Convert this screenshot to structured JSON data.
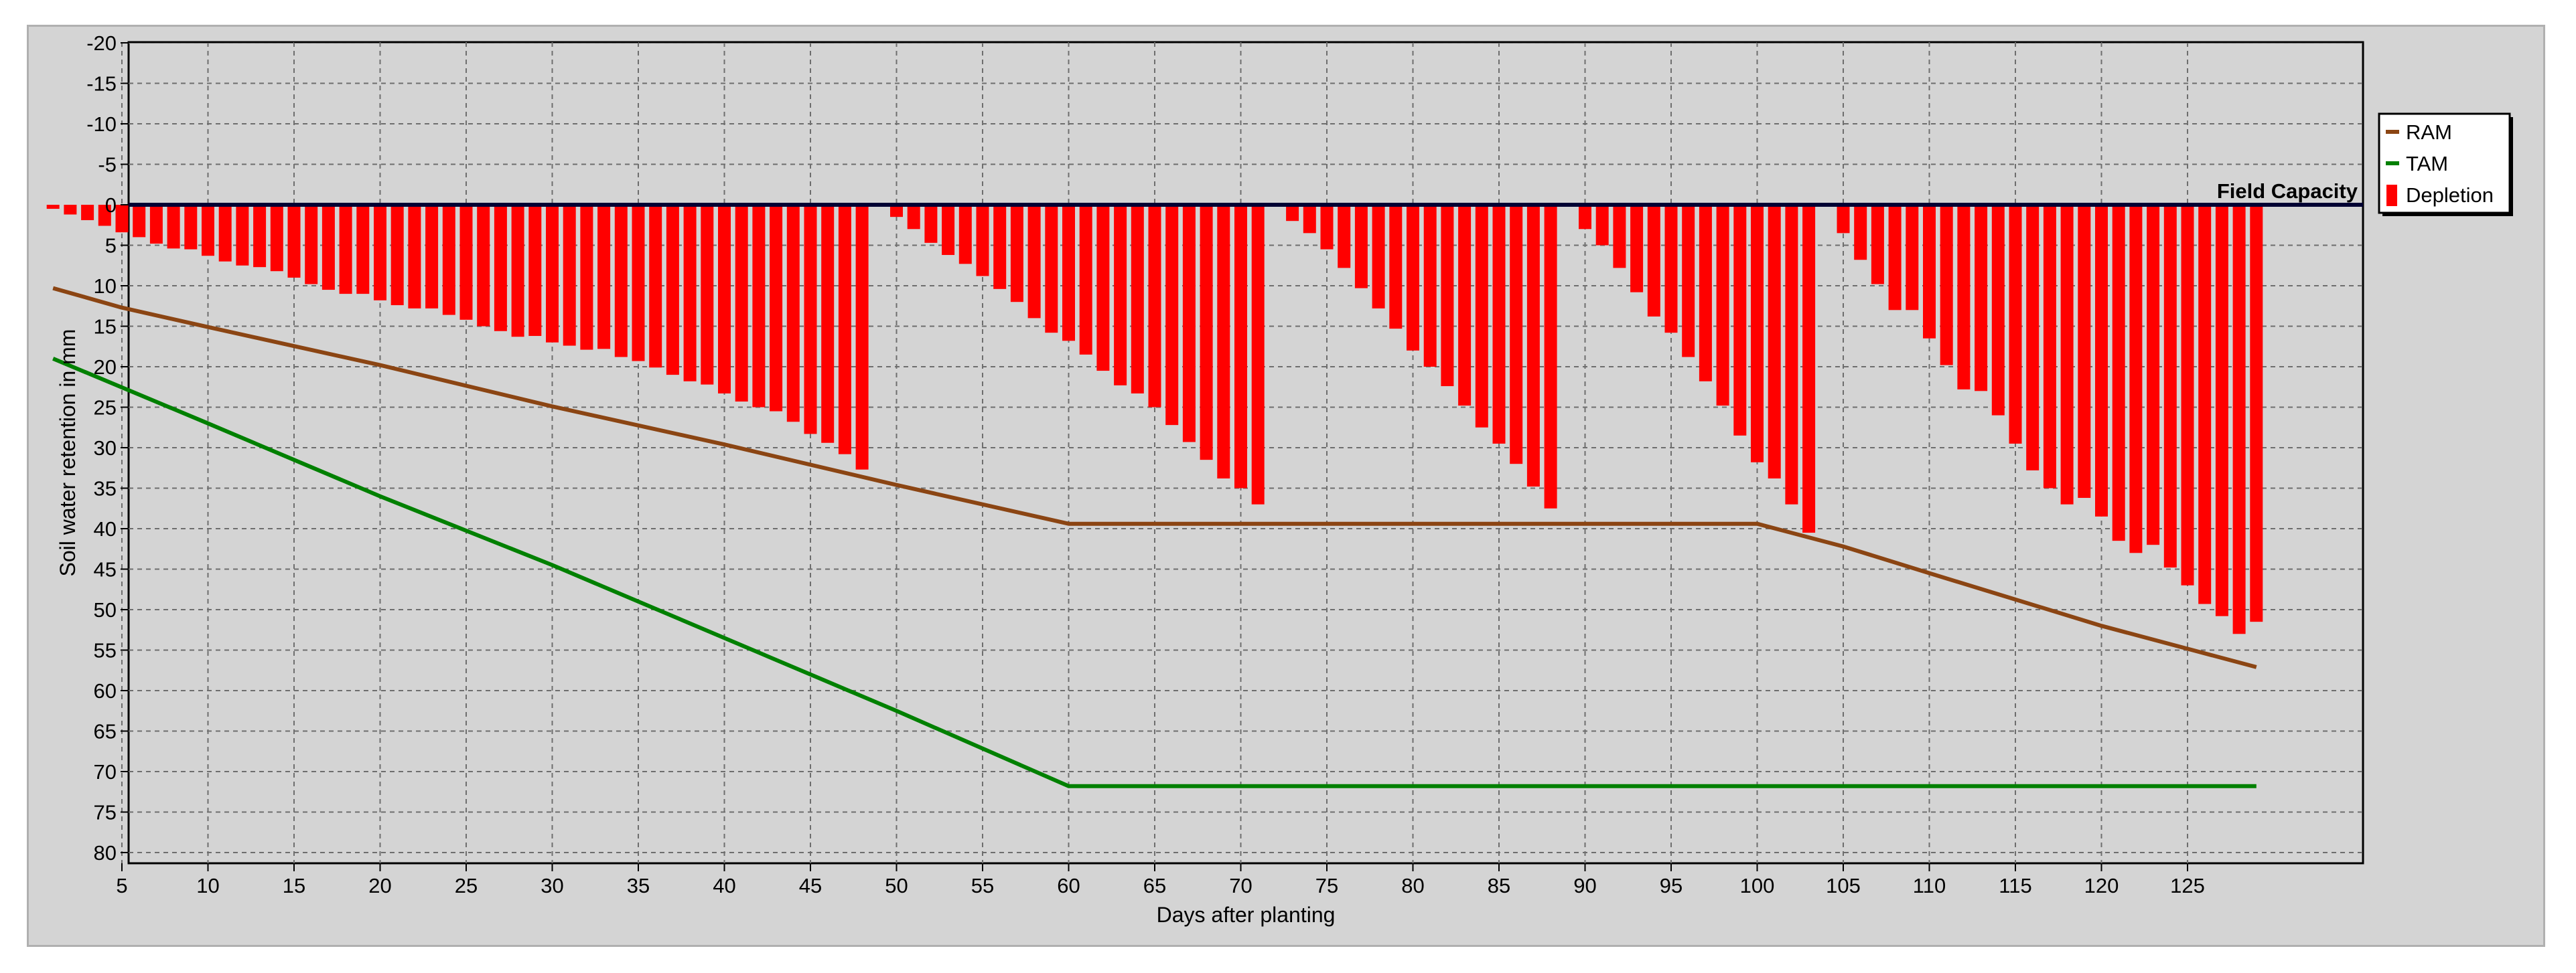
{
  "chart_data": {
    "type": "bar",
    "xlabel": "Days after planting",
    "ylabel": "Soil water retention in mm",
    "xlim": [
      0,
      130
    ],
    "ylim": [
      -20,
      82
    ],
    "y_inverted": true,
    "grid": true,
    "x_ticks": [
      5,
      10,
      15,
      20,
      25,
      30,
      35,
      40,
      45,
      50,
      55,
      60,
      65,
      70,
      75,
      80,
      85,
      90,
      95,
      100,
      105,
      110,
      115,
      120,
      125
    ],
    "y_ticks": [
      -20,
      -15,
      -10,
      -5,
      0,
      5,
      10,
      15,
      20,
      25,
      30,
      35,
      40,
      45,
      50,
      55,
      60,
      65,
      70,
      75,
      80
    ],
    "reference_line": {
      "label": "Field Capacity",
      "value": 0
    },
    "legend": {
      "position": "right",
      "entries": [
        "RAM",
        "TAM",
        "Depletion"
      ]
    },
    "colors": {
      "RAM": "#8b4513",
      "TAM": "#008000",
      "Depletion": "#ff0000",
      "field_capacity": "#000033",
      "plot_bg": "#d4d4d4",
      "grid": "#6e6e6e"
    },
    "series": [
      {
        "name": "Depletion",
        "type": "bar",
        "x": [
          1,
          2,
          3,
          4,
          5,
          6,
          7,
          8,
          9,
          10,
          11,
          12,
          13,
          14,
          15,
          16,
          17,
          18,
          19,
          20,
          21,
          22,
          23,
          24,
          25,
          26,
          27,
          28,
          29,
          30,
          31,
          32,
          33,
          34,
          35,
          36,
          37,
          38,
          39,
          40,
          41,
          42,
          43,
          44,
          45,
          46,
          47,
          48,
          50,
          51,
          52,
          53,
          54,
          55,
          56,
          57,
          58,
          59,
          60,
          61,
          62,
          63,
          64,
          65,
          66,
          67,
          68,
          69,
          70,
          71,
          73,
          74,
          75,
          76,
          77,
          78,
          79,
          80,
          81,
          82,
          83,
          84,
          85,
          86,
          87,
          88,
          90,
          91,
          92,
          93,
          94,
          95,
          96,
          97,
          98,
          99,
          100,
          101,
          102,
          103,
          105,
          106,
          107,
          108,
          109,
          110,
          111,
          112,
          113,
          114,
          115,
          116,
          117,
          118,
          119,
          120,
          121,
          122,
          123,
          124,
          125,
          126,
          127,
          128,
          129
        ],
        "values": [
          0.5,
          1.2,
          1.9,
          2.6,
          3.4,
          4.0,
          4.8,
          5.4,
          5.5,
          6.3,
          7.0,
          7.5,
          7.7,
          8.2,
          9.0,
          9.8,
          10.5,
          11.0,
          11.0,
          11.8,
          12.4,
          12.8,
          12.8,
          13.6,
          14.2,
          15.0,
          15.6,
          16.3,
          16.2,
          17.0,
          17.4,
          17.9,
          17.8,
          18.8,
          19.3,
          20.1,
          21.0,
          21.8,
          22.2,
          23.3,
          24.3,
          25.0,
          25.5,
          26.8,
          28.3,
          29.4,
          30.8,
          32.7,
          1.5,
          3.0,
          4.7,
          6.2,
          7.3,
          8.8,
          10.4,
          12.0,
          14.0,
          15.8,
          16.8,
          18.5,
          20.5,
          22.3,
          23.3,
          25.0,
          27.2,
          29.3,
          31.5,
          33.8,
          35.0,
          37.0,
          2.0,
          3.5,
          5.5,
          7.8,
          10.3,
          12.8,
          15.3,
          18.0,
          20.0,
          22.4,
          24.8,
          27.5,
          29.5,
          32.0,
          34.8,
          37.5,
          3.0,
          5.0,
          7.8,
          10.8,
          13.8,
          15.8,
          18.8,
          21.8,
          24.8,
          28.5,
          31.8,
          33.8,
          37.0,
          40.5,
          3.5,
          6.8,
          9.8,
          13.0,
          13.0,
          16.5,
          19.8,
          22.8,
          23.0,
          26.0,
          29.5,
          32.8,
          35.0,
          37.0,
          36.2,
          38.5,
          41.5,
          43.0,
          42.0,
          44.8,
          47.0,
          49.3,
          50.8,
          53.0,
          51.5
        ]
      },
      {
        "name": "RAM",
        "type": "line",
        "x": [
          1,
          5,
          10,
          20,
          30,
          40,
          50,
          60,
          100,
          105,
          110,
          120,
          129
        ],
        "values": [
          10.3,
          12.7,
          15.1,
          19.8,
          24.9,
          29.6,
          34.6,
          39.4,
          39.4,
          42.2,
          45.5,
          52.0,
          57.1
        ]
      },
      {
        "name": "TAM",
        "type": "line",
        "x": [
          1,
          10,
          20,
          30,
          40,
          50,
          60,
          129
        ],
        "values": [
          19.0,
          27.0,
          36.0,
          44.5,
          53.5,
          62.5,
          71.8,
          71.8
        ]
      }
    ]
  }
}
